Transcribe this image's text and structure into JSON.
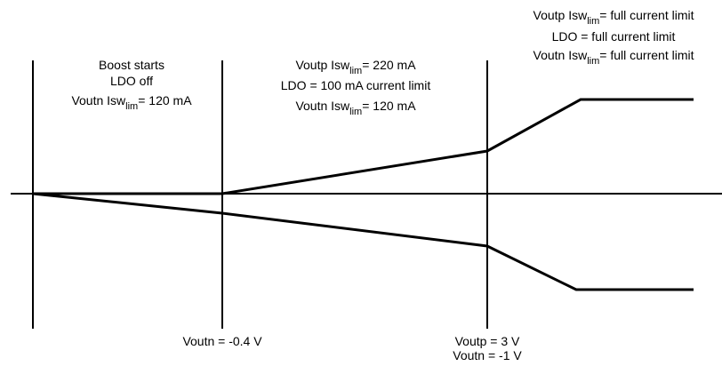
{
  "regions": [
    {
      "lines": [
        {
          "text": "Boost starts"
        },
        {
          "text": "LDO off"
        },
        {
          "text": "Voutn Isw",
          "sub": "lim",
          "post": "= 120 mA"
        }
      ]
    },
    {
      "lines": [
        {
          "text": "Voutp Isw",
          "sub": "lim",
          "post": "= 220 mA"
        },
        {
          "text": "LDO = 100 mA current limit"
        },
        {
          "text": "Voutn Isw",
          "sub": "lim",
          "post": "= 120 mA"
        }
      ]
    },
    {
      "lines": [
        {
          "text": "Voutp Isw",
          "sub": "lim",
          "post": "= full current limit"
        },
        {
          "text": "LDO = full current limit"
        },
        {
          "text": "Voutn Isw",
          "sub": "lim",
          "post": "= full current limit"
        }
      ]
    }
  ],
  "markers": [
    {
      "lines": [
        "Voutn = -0.4 V"
      ]
    },
    {
      "lines": [
        "Voutp = 3 V",
        "Voutn = -1 V"
      ]
    }
  ]
}
